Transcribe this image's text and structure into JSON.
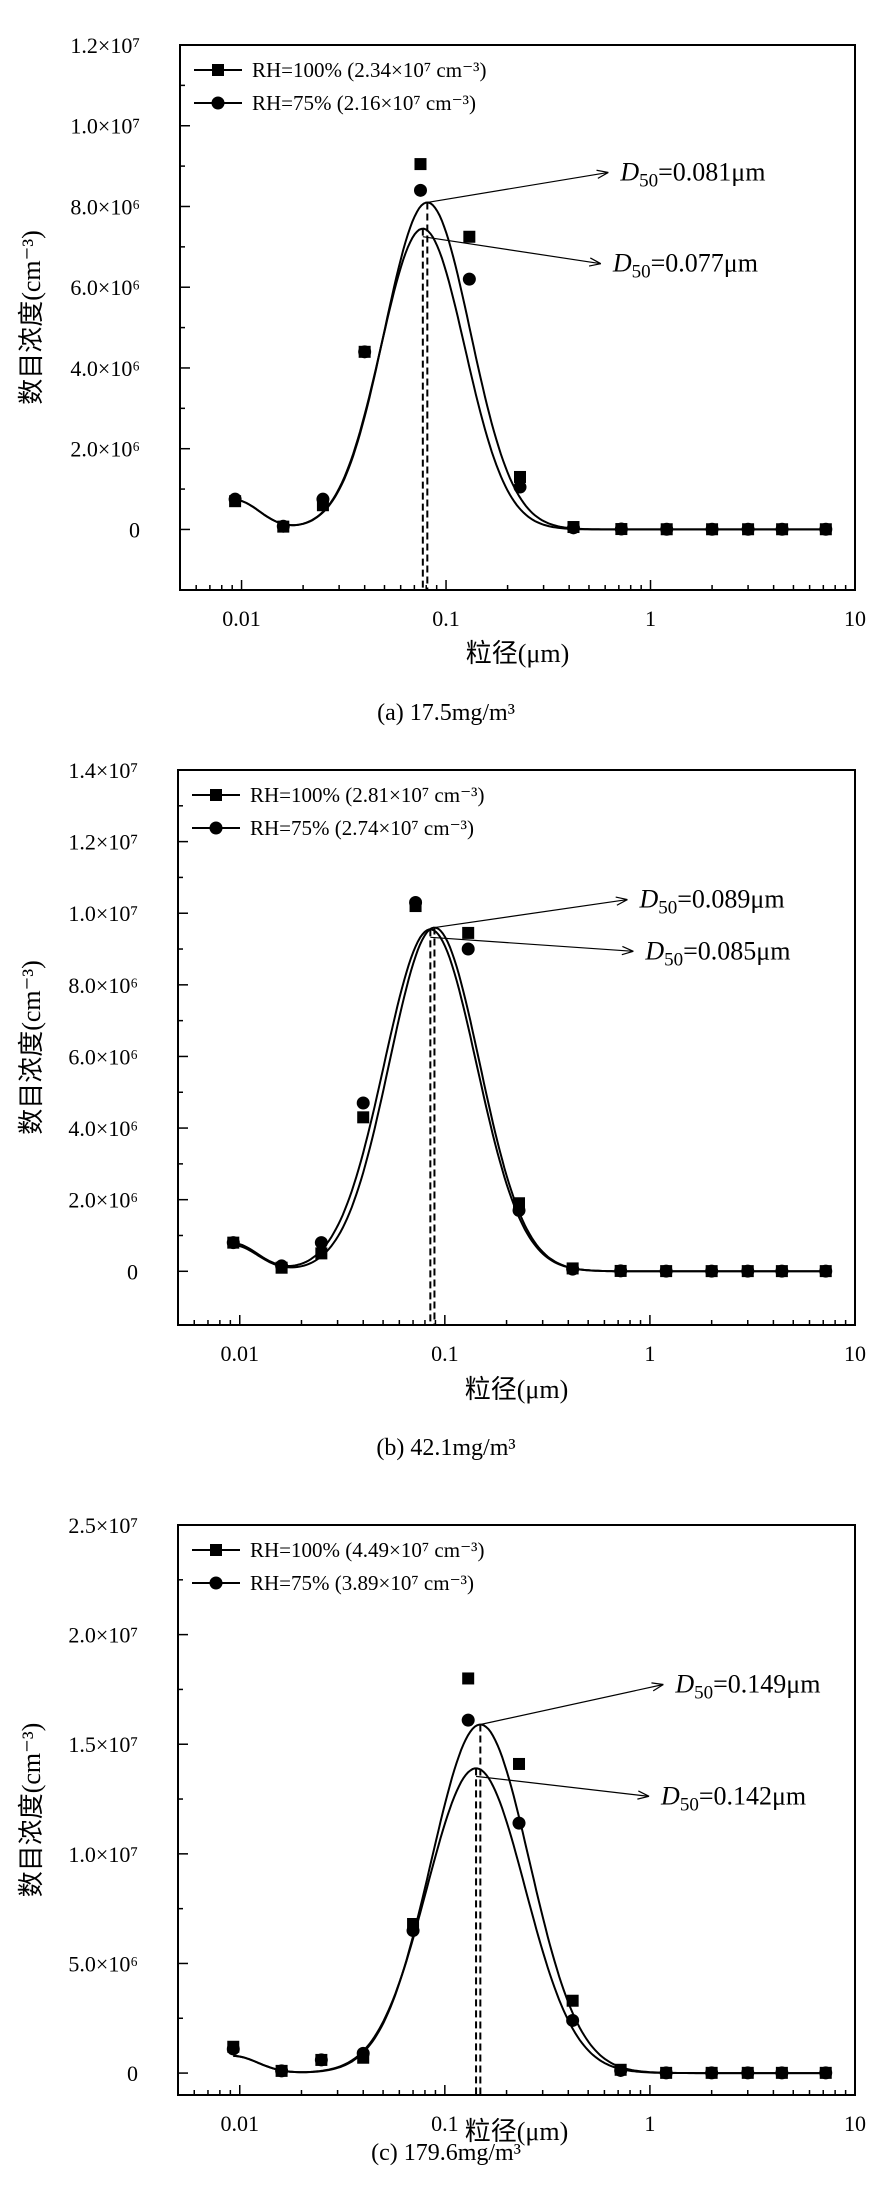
{
  "chart_data": [
    {
      "type": "scatter",
      "panel_label": "(a) 17.5mg/m³",
      "xlabel": "粒径(μm)",
      "ylabel": "数目浓度(cm⁻³)",
      "x_scale": "log",
      "xlim": [
        0.005,
        10
      ],
      "ylim": [
        -1500000,
        12000000
      ],
      "x_tick_labels": [
        "0.01",
        "0.1",
        "1",
        "10"
      ],
      "y_ticks": [
        {
          "value": 0,
          "label": "0"
        },
        {
          "value": 2000000,
          "label": "2.0×10⁶"
        },
        {
          "value": 4000000,
          "label": "4.0×10⁶"
        },
        {
          "value": 6000000,
          "label": "6.0×10⁶"
        },
        {
          "value": 8000000,
          "label": "8.0×10⁶"
        },
        {
          "value": 10000000,
          "label": "1.0×10⁷"
        },
        {
          "value": 12000000,
          "label": "1.2×10⁷"
        }
      ],
      "legend_position": "top-left",
      "x": [
        0.0093,
        0.016,
        0.025,
        0.04,
        0.075,
        0.13,
        0.23,
        0.42,
        0.72,
        1.2,
        2.0,
        3.0,
        4.4,
        7.2
      ],
      "series": [
        {
          "name": "RH=100% (2.34×10⁷ cm⁻³)",
          "marker": "square",
          "values": [
            700000,
            70000,
            600000,
            4400000,
            9050000,
            7250000,
            1300000,
            60000,
            10000,
            5000,
            5000,
            5000,
            5000,
            5000
          ],
          "fit": {
            "peak": 8100000,
            "center": 0.081,
            "sigma": 0.21,
            "dip": 280000
          }
        },
        {
          "name": "RH=75% (2.16×10⁷ cm⁻³)",
          "marker": "circle",
          "values": [
            750000,
            80000,
            750000,
            4400000,
            8400000,
            6200000,
            1050000,
            40000,
            10000,
            5000,
            5000,
            5000,
            5000,
            5000
          ],
          "fit": {
            "peak": 7450000,
            "center": 0.077,
            "sigma": 0.205,
            "dip": 280000
          }
        }
      ],
      "annotations": [
        {
          "label": "D",
          "sub": "50",
          "text": "=0.081μm",
          "x": 0.081
        },
        {
          "label": "D",
          "sub": "50",
          "text": "=0.077μm",
          "x": 0.077
        }
      ]
    },
    {
      "type": "scatter",
      "panel_label": "(b) 42.1mg/m³",
      "xlabel": "粒径(μm)",
      "ylabel": "数目浓度(cm⁻³)",
      "x_scale": "log",
      "xlim": [
        0.005,
        10
      ],
      "ylim": [
        -1500000,
        14000000
      ],
      "x_tick_labels": [
        "0.01",
        "0.1",
        "1",
        "10"
      ],
      "y_ticks": [
        {
          "value": 0,
          "label": "0"
        },
        {
          "value": 2000000,
          "label": "2.0×10⁶"
        },
        {
          "value": 4000000,
          "label": "4.0×10⁶"
        },
        {
          "value": 6000000,
          "label": "6.0×10⁶"
        },
        {
          "value": 8000000,
          "label": "8.0×10⁶"
        },
        {
          "value": 10000000,
          "label": "1.0×10⁷"
        },
        {
          "value": 12000000,
          "label": "1.2×10⁷"
        },
        {
          "value": 14000000,
          "label": "1.4×10⁷"
        }
      ],
      "legend_position": "top-left",
      "x": [
        0.0093,
        0.016,
        0.025,
        0.04,
        0.072,
        0.13,
        0.23,
        0.42,
        0.72,
        1.2,
        2.0,
        3.0,
        4.4,
        7.2
      ],
      "series": [
        {
          "name": "RH=100% (2.81×10⁷ cm⁻³)",
          "marker": "square",
          "values": [
            800000,
            100000,
            500000,
            4300000,
            10200000,
            9450000,
            1900000,
            80000,
            10000,
            5000,
            5000,
            5000,
            5000,
            5000
          ],
          "fit": {
            "peak": 9600000,
            "center": 0.089,
            "sigma": 0.22,
            "dip": 280000
          }
        },
        {
          "name": "RH=75% (2.74×10⁷ cm⁻³)",
          "marker": "circle",
          "values": [
            800000,
            150000,
            800000,
            4700000,
            10300000,
            9000000,
            1700000,
            60000,
            10000,
            5000,
            5000,
            5000,
            5000,
            5000
          ],
          "fit": {
            "peak": 9550000,
            "center": 0.085,
            "sigma": 0.225,
            "dip": 300000
          }
        }
      ],
      "annotations": [
        {
          "label": "D",
          "sub": "50",
          "text": "=0.089μm",
          "x": 0.089
        },
        {
          "label": "D",
          "sub": "50",
          "text": "=0.085μm",
          "x": 0.085
        }
      ]
    },
    {
      "type": "scatter",
      "panel_label": "(c) 179.6mg/m³",
      "xlabel": "粒径(μm)",
      "ylabel": "数目浓度(cm⁻³)",
      "x_scale": "log",
      "xlim": [
        0.005,
        10
      ],
      "ylim": [
        -1000000,
        25000000
      ],
      "x_tick_labels": [
        "0.01",
        "0.1",
        "1",
        "10"
      ],
      "y_ticks": [
        {
          "value": 0,
          "label": "0"
        },
        {
          "value": 5000000,
          "label": "5.0×10⁶"
        },
        {
          "value": 10000000,
          "label": "1.0×10⁷"
        },
        {
          "value": 15000000,
          "label": "1.5×10⁷"
        },
        {
          "value": 20000000,
          "label": "2.0×10⁷"
        },
        {
          "value": 25000000,
          "label": "2.5×10⁷"
        }
      ],
      "legend_position": "top-left",
      "x": [
        0.0093,
        0.016,
        0.025,
        0.04,
        0.07,
        0.13,
        0.23,
        0.42,
        0.72,
        1.2,
        2.0,
        3.0,
        4.4,
        7.2
      ],
      "series": [
        {
          "name": "RH=100% (4.49×10⁷ cm⁻³)",
          "marker": "square",
          "values": [
            1200000,
            100000,
            600000,
            700000,
            6800000,
            18000000,
            14100000,
            3300000,
            150000,
            10000,
            10000,
            10000,
            10000,
            10000
          ],
          "fit": {
            "peak": 15900000,
            "center": 0.149,
            "sigma": 0.24,
            "dip": 300000
          }
        },
        {
          "name": "RH=75% (3.89×10⁷ cm⁻³)",
          "marker": "circle",
          "values": [
            1100000,
            100000,
            600000,
            900000,
            6500000,
            16100000,
            11400000,
            2400000,
            120000,
            10000,
            10000,
            10000,
            10000,
            10000
          ],
          "fit": {
            "peak": 13900000,
            "center": 0.142,
            "sigma": 0.24,
            "dip": 300000
          }
        }
      ],
      "annotations": [
        {
          "label": "D",
          "sub": "50",
          "text": "=0.149μm",
          "x": 0.149
        },
        {
          "label": "D",
          "sub": "50",
          "text": "=0.142μm",
          "x": 0.142
        }
      ]
    }
  ]
}
